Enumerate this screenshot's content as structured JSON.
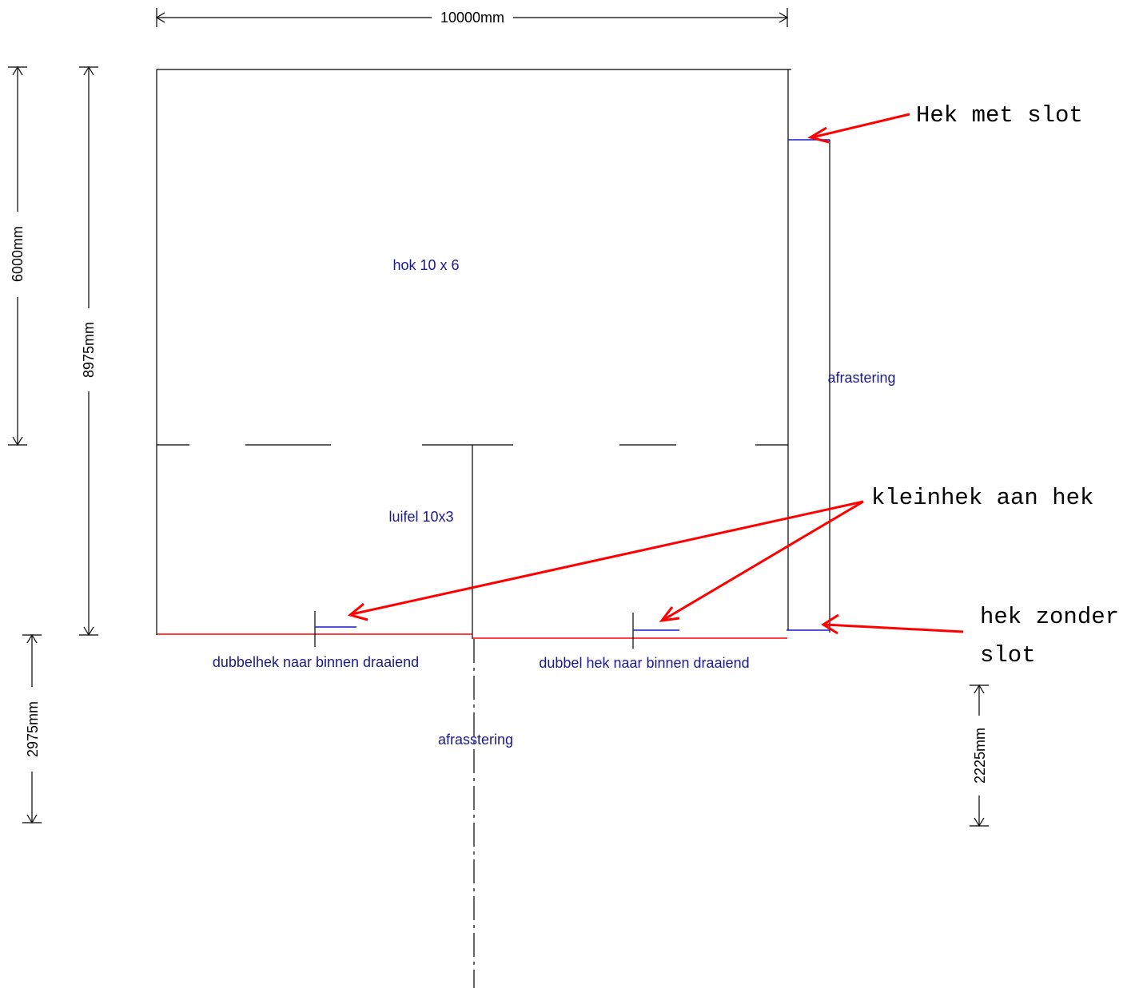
{
  "dimensions": {
    "width_top": "10000mm",
    "height_hok": "6000mm",
    "height_total": "8975mm",
    "height_below": "2975mm",
    "height_right": "2225mm"
  },
  "labels": {
    "hok": "hok 10 x 6",
    "luifel": "luifel 10x3",
    "afrastering_right": "afrastering",
    "afrasstering_bottom": "afrasstering",
    "gate_left": "dubbelhek naar binnen draaiend",
    "gate_right": "dubbel hek naar binnen draaiend"
  },
  "callouts": {
    "hek_met_slot": "Hek met slot",
    "kleinhek": "kleinhek aan hek",
    "hek_zonder_line1": "hek zonder",
    "hek_zonder_line2": "slot"
  },
  "colors": {
    "annotation_arrow": "#ff0000",
    "label_text": "#1a1a8c",
    "gate_marker": "#1a1acc",
    "outline": "#000000"
  }
}
